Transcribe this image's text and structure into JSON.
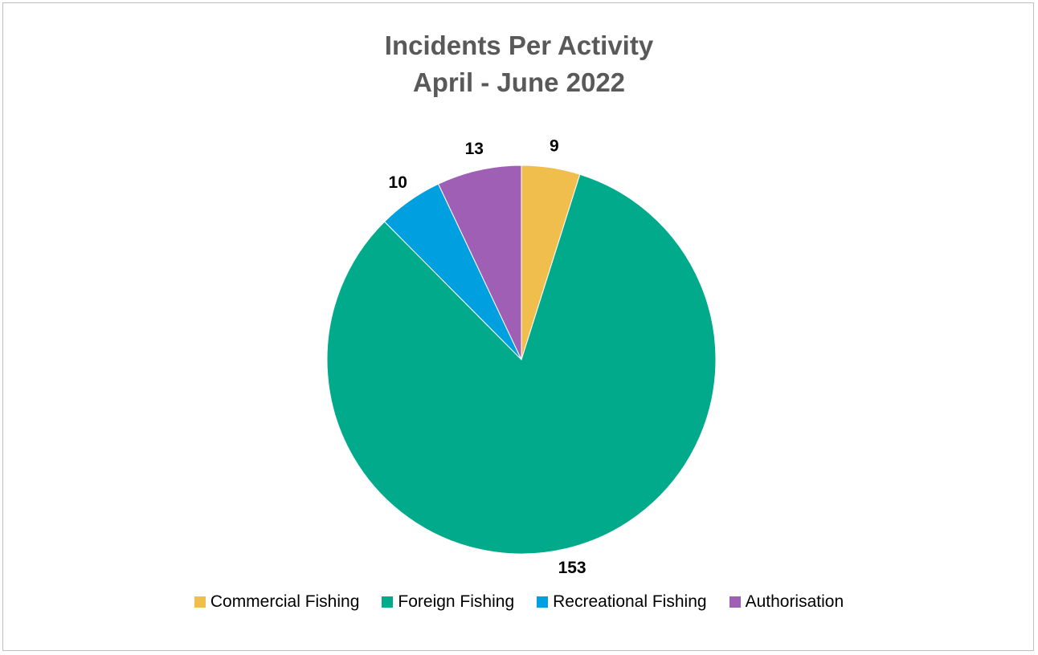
{
  "chart_data": {
    "type": "pie",
    "title_lines": [
      "Incidents Per Activity",
      "April - June 2022"
    ],
    "categories": [
      "Commercial Fishing",
      "Foreign Fishing",
      "Recreational Fishing",
      "Authorisation"
    ],
    "values": [
      9,
      153,
      10,
      13
    ],
    "data_labels": [
      "9",
      "153",
      "10",
      "13"
    ],
    "colors": [
      "#F0BE4C",
      "#00AA8A",
      "#00A0E0",
      "#9F5FB4"
    ],
    "legend_position": "bottom",
    "start_angle": "12 o'clock",
    "direction": "clockwise"
  }
}
